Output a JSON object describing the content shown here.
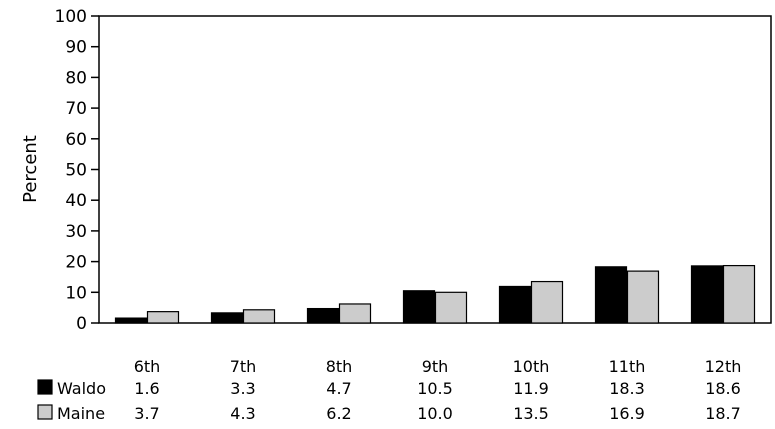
{
  "chart_data": {
    "type": "bar",
    "title": "",
    "xlabel": "",
    "ylabel": "Percent",
    "ylim": [
      0,
      100
    ],
    "yticks": [
      0,
      10,
      20,
      30,
      40,
      50,
      60,
      70,
      80,
      90,
      100
    ],
    "grid": false,
    "categories": [
      "6th",
      "7th",
      "8th",
      "9th",
      "10th",
      "11th",
      "12th"
    ],
    "series": [
      {
        "name": "Waldo",
        "color": "#000000",
        "values": [
          1.6,
          3.3,
          4.7,
          10.5,
          11.9,
          18.3,
          18.6
        ],
        "labels": [
          "1.6",
          "3.3",
          "4.7",
          "10.5",
          "11.9",
          "18.3",
          "18.6"
        ]
      },
      {
        "name": "Maine",
        "color": "#cccccc",
        "values": [
          3.7,
          4.3,
          6.2,
          10.0,
          13.5,
          16.9,
          18.7
        ],
        "labels": [
          "3.7",
          "4.3",
          "6.2",
          "10.0",
          "13.5",
          "16.9",
          "18.7"
        ]
      }
    ],
    "legend": "data-table-below"
  }
}
